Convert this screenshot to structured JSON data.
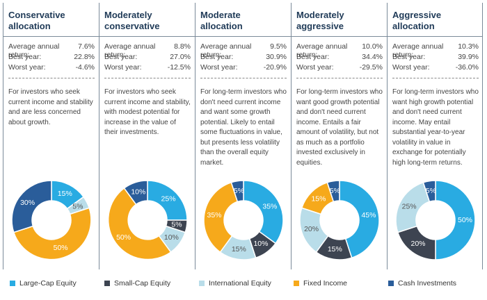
{
  "chart_data": [
    {
      "type": "pie",
      "title": "Conservative allocation",
      "stats": [
        {
          "label": "Average annual return:",
          "value": "7.6%"
        },
        {
          "label": "Best year:",
          "value": "22.8%"
        },
        {
          "label": "Worst year:",
          "value": "-4.6%"
        }
      ],
      "description": "For investors who seek current income and stability and are less concerned about growth.",
      "values": [
        15,
        0,
        5,
        50,
        30
      ],
      "value_labels": [
        "15%",
        null,
        "5%",
        "50%",
        "30%"
      ]
    },
    {
      "type": "pie",
      "title": "Moderately conservative",
      "stats": [
        {
          "label": "Average annual return:",
          "value": "8.8%"
        },
        {
          "label": "Best year:",
          "value": "27.0%"
        },
        {
          "label": "Worst year:",
          "value": "-12.5%"
        }
      ],
      "description": "For investors who seek current income and stability, with modest potential for increase in the value of their investments.",
      "values": [
        25,
        5,
        10,
        50,
        10
      ],
      "value_labels": [
        "25%",
        "5%",
        "10%",
        "50%",
        "10%"
      ]
    },
    {
      "type": "pie",
      "title": "Moderate allocation",
      "stats": [
        {
          "label": "Average annual return:",
          "value": "9.5%"
        },
        {
          "label": "Best year:",
          "value": "30.9%"
        },
        {
          "label": "Worst year:",
          "value": "-20.9%"
        }
      ],
      "description": "For long-term investors who don't need current income and want some growth potential. Likely to entail some fluctuations in value, but presents less volatility than the overall equity market.",
      "values": [
        35,
        10,
        15,
        35,
        5
      ],
      "value_labels": [
        "35%",
        "10%",
        "15%",
        "35%",
        "5%"
      ]
    },
    {
      "type": "pie",
      "title": "Moderately aggressive",
      "stats": [
        {
          "label": "Average annual return:",
          "value": "10.0%"
        },
        {
          "label": "Best year:",
          "value": "34.4%"
        },
        {
          "label": "Worst year:",
          "value": "-29.5%"
        }
      ],
      "description": "For long-term investors who want good growth potential and don't need current income. Entails a fair amount of volatility, but not as much as a portfolio invested exclusively in equities.",
      "values": [
        45,
        15,
        20,
        15,
        5
      ],
      "value_labels": [
        "45%",
        "15%",
        "20%",
        "15%",
        "5%"
      ]
    },
    {
      "type": "pie",
      "title": "Aggressive allocation",
      "stats": [
        {
          "label": "Average annual return:",
          "value": "10.3%"
        },
        {
          "label": "Best year:",
          "value": "39.9%"
        },
        {
          "label": "Worst year:",
          "value": "-36.0%"
        }
      ],
      "description": "For long-term investors who want high growth potential and don't need current income. May entail substantial year-to-year volatility in value in exchange for potentially high long-term returns.",
      "values": [
        50,
        20,
        25,
        0,
        5
      ],
      "value_labels": [
        "50%",
        "20%",
        "25%",
        null,
        "5%"
      ]
    }
  ],
  "legend": {
    "labels": [
      "Large-Cap Equity",
      "Small-Cap Equity",
      "International Equity",
      "Fixed Income",
      "Cash Investments"
    ],
    "colors": [
      "#29abe2",
      "#3d4451",
      "#b9dde9",
      "#f6a91b",
      "#2a5d9a"
    ]
  }
}
